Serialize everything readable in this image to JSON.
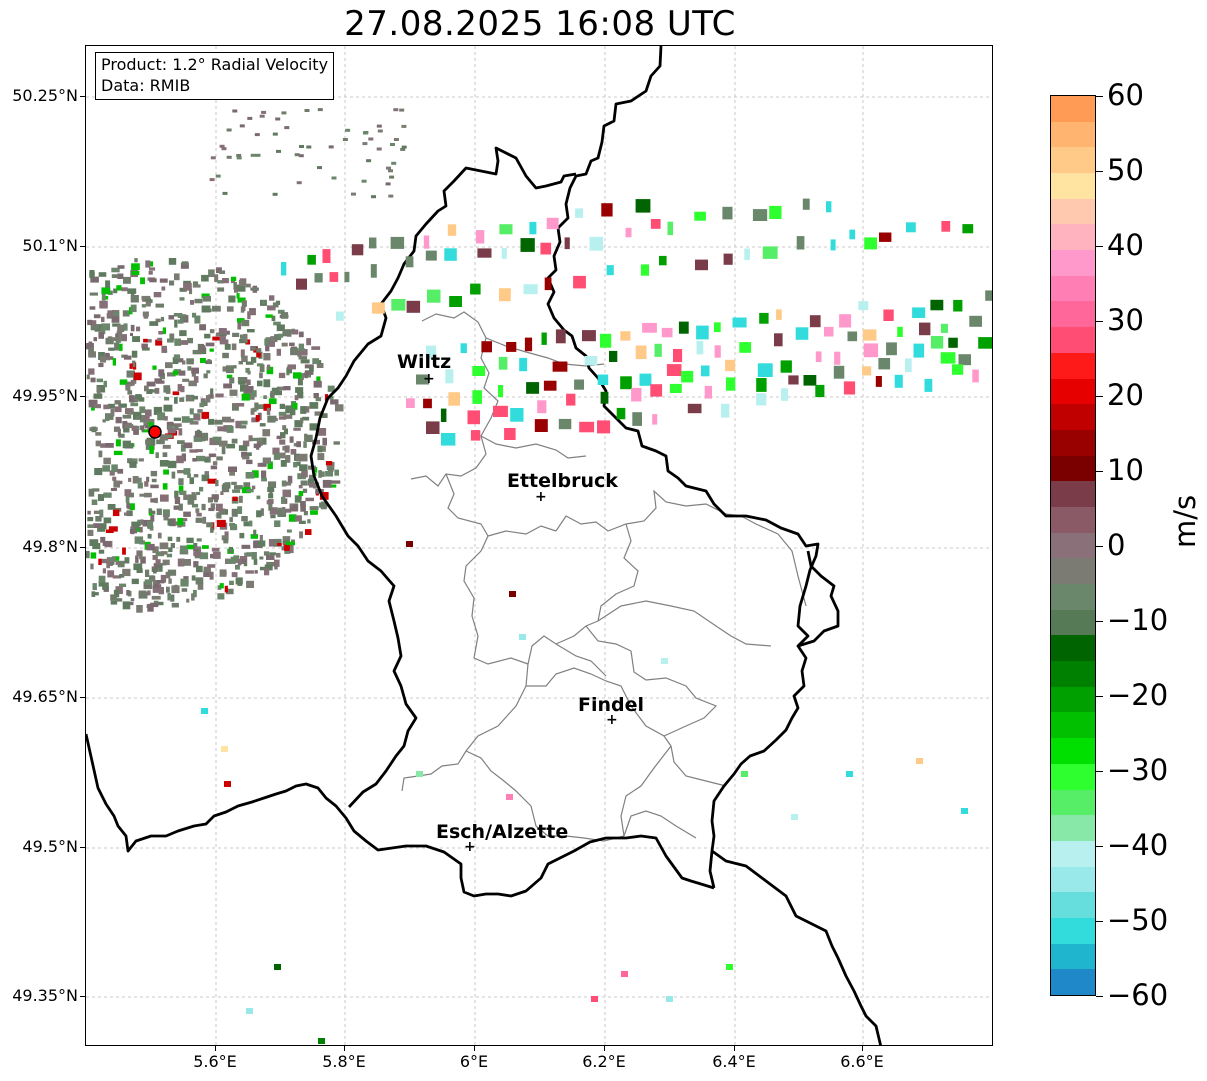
{
  "title": "27.08.2025 16:08 UTC",
  "info": {
    "product": "Product: 1.2° Radial Velocity",
    "data": "Data: RMIB"
  },
  "map": {
    "lat_labels": [
      "50.25°N",
      "50.1°N",
      "49.95°N",
      "49.8°N",
      "49.65°N",
      "49.5°N",
      "49.35°N"
    ],
    "lon_labels": [
      "5.6°E",
      "5.8°E",
      "6°E",
      "6.2°E",
      "6.4°E",
      "6.6°E"
    ],
    "cities": [
      {
        "name": "Wiltz"
      },
      {
        "name": "Ettelbruck"
      },
      {
        "name": "Findel"
      },
      {
        "name": "Esch/Alzette"
      }
    ],
    "radar_site_color": "#ff0000"
  },
  "colorbar": {
    "label": "m/s",
    "ticks": [
      "60",
      "50",
      "40",
      "30",
      "20",
      "10",
      "0",
      "−10",
      "−20",
      "−30",
      "−40",
      "−50",
      "−60"
    ],
    "colors": [
      "#ff9b55",
      "#ffb46f",
      "#ffc987",
      "#ffe3a0",
      "#ffc9b0",
      "#ffb3bf",
      "#ff99cc",
      "#ff7fb5",
      "#ff6699",
      "#ff4d73",
      "#ff1a1a",
      "#e60000",
      "#c00000",
      "#990000",
      "#7a0000",
      "#7a3c48",
      "#8a5a66",
      "#8a7078",
      "#7b7b73",
      "#6a876c",
      "#557a55",
      "#006400",
      "#008000",
      "#00a000",
      "#00c000",
      "#00e000",
      "#2eff2e",
      "#55ee66",
      "#88e8a8",
      "#b8f0f0",
      "#99e8ea",
      "#66dede",
      "#33dcdc",
      "#1fb5cf",
      "#1f88c8"
    ]
  }
}
